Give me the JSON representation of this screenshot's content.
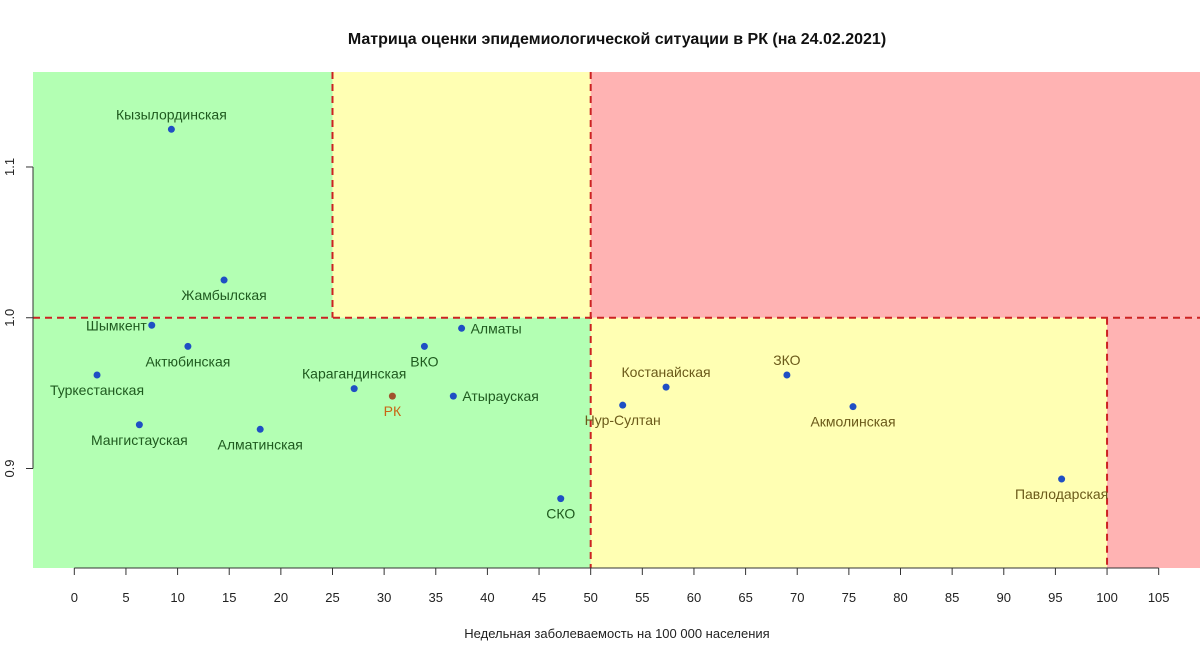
{
  "chart_data": {
    "type": "scatter",
    "title": "Матрица оценки эпидемиологической ситуации в РК (на 24.02.2021)",
    "xlabel": "Недельная заболеваемость на 100 000 населения",
    "ylabel": "",
    "xlim": [
      -4,
      109
    ],
    "ylim": [
      0.834,
      1.163
    ],
    "x_ticks": [
      0,
      5,
      10,
      15,
      20,
      25,
      30,
      35,
      40,
      45,
      50,
      55,
      60,
      65,
      70,
      75,
      80,
      85,
      90,
      95,
      100,
      105
    ],
    "y_ticks": [
      0.9,
      1.0,
      1.1
    ],
    "y_tick_labels": [
      "0.9",
      "1.0",
      "1.1"
    ],
    "grid": false,
    "zones": [
      {
        "x": [
          -4,
          25
        ],
        "y": [
          1.0,
          1.163
        ],
        "color": "#b3ffb3"
      },
      {
        "x": [
          25,
          50
        ],
        "y": [
          1.0,
          1.163
        ],
        "color": "#ffffb3"
      },
      {
        "x": [
          50,
          109
        ],
        "y": [
          1.0,
          1.163
        ],
        "color": "#ffb3b3"
      },
      {
        "x": [
          -4,
          50
        ],
        "y": [
          0.834,
          1.0
        ],
        "color": "#b3ffb3"
      },
      {
        "x": [
          50,
          100
        ],
        "y": [
          0.834,
          1.0
        ],
        "color": "#ffffb3"
      },
      {
        "x": [
          100,
          109
        ],
        "y": [
          0.834,
          1.0
        ],
        "color": "#ffb3b3"
      }
    ],
    "threshold_lines": [
      {
        "orientation": "vertical",
        "x": 25,
        "y": [
          1.0,
          1.163
        ]
      },
      {
        "orientation": "vertical",
        "x": 50,
        "y": [
          0.834,
          1.163
        ]
      },
      {
        "orientation": "vertical",
        "x": 100,
        "y": [
          0.834,
          1.0
        ]
      },
      {
        "orientation": "horizontal",
        "y": 1.0,
        "x": [
          -4,
          109
        ]
      }
    ],
    "colors": {
      "threshold": "#cc2222",
      "point": "#1f4fc4",
      "point_rk": "#a0522d",
      "label_green": "#1f5a1f",
      "label_yellow": "#6b5a1a",
      "label_rk": "#c86414"
    },
    "points": [
      {
        "label": "Кызылординская",
        "x": 9.4,
        "y": 1.125,
        "label_pos": "above",
        "label_color": "label_green"
      },
      {
        "label": "Жамбылская",
        "x": 14.5,
        "y": 1.025,
        "label_pos": "below",
        "label_color": "label_green"
      },
      {
        "label": "Шымкент",
        "x": 7.5,
        "y": 0.995,
        "label_pos": "left",
        "label_color": "label_green"
      },
      {
        "label": "Актюбинская",
        "x": 11.0,
        "y": 0.981,
        "label_pos": "below",
        "label_color": "label_green"
      },
      {
        "label": "Туркестанская",
        "x": 2.2,
        "y": 0.962,
        "label_pos": "below",
        "label_color": "label_green"
      },
      {
        "label": "Мангистауская",
        "x": 6.3,
        "y": 0.929,
        "label_pos": "below",
        "label_color": "label_green"
      },
      {
        "label": "Алматинская",
        "x": 18.0,
        "y": 0.926,
        "label_pos": "below",
        "label_color": "label_green"
      },
      {
        "label": "Карагандинская",
        "x": 27.1,
        "y": 0.953,
        "label_pos": "above",
        "label_color": "label_green"
      },
      {
        "label": "РК",
        "x": 30.8,
        "y": 0.948,
        "label_pos": "below",
        "label_color": "label_rk",
        "rk": true
      },
      {
        "label": "ВКО",
        "x": 33.9,
        "y": 0.981,
        "label_pos": "below",
        "label_color": "label_green"
      },
      {
        "label": "Алматы",
        "x": 37.5,
        "y": 0.993,
        "label_pos": "right",
        "label_color": "label_green"
      },
      {
        "label": "Атырауская",
        "x": 36.7,
        "y": 0.948,
        "label_pos": "right",
        "label_color": "label_green"
      },
      {
        "label": "СКО",
        "x": 47.1,
        "y": 0.88,
        "label_pos": "below",
        "label_color": "label_green"
      },
      {
        "label": "Нур-Султан",
        "x": 53.1,
        "y": 0.942,
        "label_pos": "below",
        "label_color": "label_yellow"
      },
      {
        "label": "Костанайская",
        "x": 57.3,
        "y": 0.954,
        "label_pos": "above",
        "label_color": "label_yellow"
      },
      {
        "label": "ЗКО",
        "x": 69.0,
        "y": 0.962,
        "label_pos": "above",
        "label_color": "label_yellow"
      },
      {
        "label": "Акмолинская",
        "x": 75.4,
        "y": 0.941,
        "label_pos": "below",
        "label_color": "label_yellow"
      },
      {
        "label": "Павлодарская",
        "x": 95.6,
        "y": 0.893,
        "label_pos": "below",
        "label_color": "label_yellow"
      }
    ]
  }
}
